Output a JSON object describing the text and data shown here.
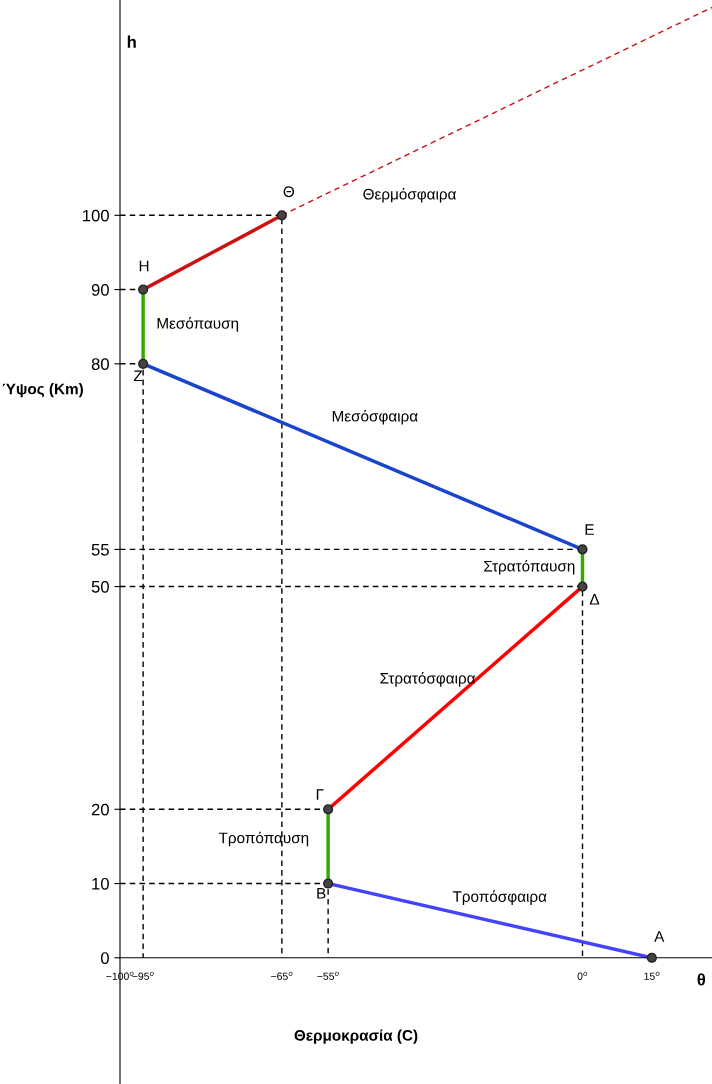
{
  "chart_data": {
    "type": "line",
    "xlabel": "Θερμοκρασία (C)",
    "ylabel": "Ύψος (Km)",
    "xlim": [
      -100,
      28
    ],
    "ylim": [
      -17,
      129
    ],
    "xticks": [
      {
        "value": -100,
        "label": "−100$^{o}$"
      },
      {
        "value": -95,
        "label": "−95$^{o}$"
      },
      {
        "value": -65,
        "label": "−65$^{o}$"
      },
      {
        "value": -55,
        "label": "−55$^{o}$"
      },
      {
        "value": 0,
        "label": "0$^{o}$"
      },
      {
        "value": 15,
        "label": "15$^{o}$"
      }
    ],
    "yticks": [
      0,
      10,
      20,
      50,
      55,
      80,
      90,
      100
    ],
    "series": [
      {
        "x": [
          -100,
          -65,
          -65
        ],
        "values": [
          100,
          100,
          0
        ],
        "color": "#000000",
        "marker": "none",
        "line_style": "dashed"
      },
      {
        "x": [
          -100,
          -95
        ],
        "values": [
          90,
          90
        ],
        "color": "#000000",
        "marker": "none",
        "line_style": "dashed"
      },
      {
        "x": [
          -100,
          -95,
          -95
        ],
        "values": [
          80,
          80,
          0
        ],
        "color": "#000000",
        "marker": "none",
        "line_style": "dashed"
      },
      {
        "x": [
          -100,
          0
        ],
        "values": [
          55,
          55
        ],
        "color": "#000000",
        "marker": "none",
        "line_style": "dashed"
      },
      {
        "x": [
          -100,
          0,
          0
        ],
        "values": [
          50,
          50,
          0
        ],
        "color": "#000000",
        "marker": "none",
        "line_style": "dashed"
      },
      {
        "x": [
          -100,
          -55
        ],
        "values": [
          20,
          20
        ],
        "color": "#000000",
        "marker": "none",
        "line_style": "dashed"
      },
      {
        "x": [
          -100,
          -55,
          -55
        ],
        "values": [
          10,
          10,
          0
        ],
        "color": "#000000",
        "marker": "none",
        "line_style": "dashed"
      },
      {
        "x": [
          -65,
          28
        ],
        "values": [
          100,
          128
        ],
        "color": "#cc1111",
        "marker": "none",
        "line_style": "dashed"
      },
      {
        "x": [
          15,
          -55
        ],
        "values": [
          0,
          10
        ],
        "color": "#4444ff",
        "marker": "none",
        "line_style": "solid"
      },
      {
        "x": [
          -55,
          -55
        ],
        "values": [
          10,
          20
        ],
        "color": "#33aa00",
        "marker": "none",
        "line_style": "solid"
      },
      {
        "x": [
          -55,
          0
        ],
        "values": [
          20,
          50
        ],
        "color": "#ff0000",
        "marker": "none",
        "line_style": "solid"
      },
      {
        "x": [
          0,
          0
        ],
        "values": [
          50,
          55
        ],
        "color": "#33aa00",
        "marker": "none",
        "line_style": "solid"
      },
      {
        "x": [
          0,
          -95
        ],
        "values": [
          55,
          80
        ],
        "color": "#1a44cc",
        "marker": "none",
        "line_style": "solid"
      },
      {
        "x": [
          -95,
          -95
        ],
        "values": [
          80,
          90
        ],
        "color": "#33aa00",
        "marker": "none",
        "line_style": "solid"
      },
      {
        "x": [
          -95,
          -65
        ],
        "values": [
          90,
          100
        ],
        "color": "#cc1111",
        "marker": "none",
        "line_style": "solid"
      },
      {
        "type": "scatter",
        "x": [
          15,
          -55,
          -55,
          0,
          0,
          -95,
          -95,
          -65
        ],
        "values": [
          0,
          10,
          20,
          50,
          55,
          80,
          90,
          100
        ],
        "color": "#444444",
        "marker": "circle"
      }
    ],
    "annotations": [
      "h",
      "θ",
      "A",
      "B",
      "Γ",
      "Δ",
      "E",
      "Z",
      "H",
      "Θ",
      "Θερμόσφαιρα",
      "Μεσόπαυση",
      "Μεσόσφαιρα",
      "Στρατόπαυση",
      "Στρατόσφαιρα",
      "Τροπόπαυση",
      "Τροπόσφαιρα"
    ]
  }
}
